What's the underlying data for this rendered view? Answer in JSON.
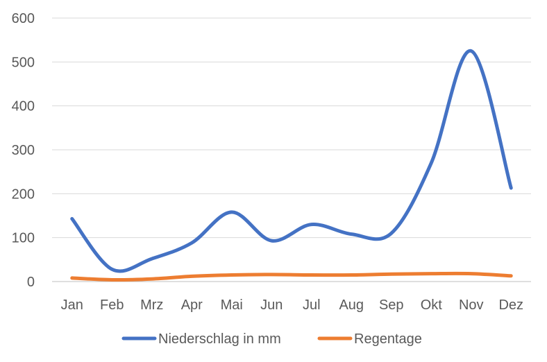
{
  "chart_data": {
    "type": "line",
    "categories": [
      "Jan",
      "Feb",
      "Mrz",
      "Apr",
      "Mai",
      "Jun",
      "Jul",
      "Aug",
      "Sep",
      "Okt",
      "Nov",
      "Dez"
    ],
    "series": [
      {
        "name": "Niederschlag in mm",
        "color": "#4472C4",
        "values": [
          143,
          28,
          52,
          88,
          158,
          93,
          130,
          108,
          110,
          270,
          525,
          213
        ]
      },
      {
        "name": "Regentage",
        "color": "#ED7D31",
        "values": [
          8,
          4,
          6,
          12,
          15,
          16,
          15,
          15,
          17,
          18,
          18,
          13
        ]
      }
    ],
    "ylim": [
      0,
      600
    ],
    "yticks": [
      "0",
      "100",
      "200",
      "300",
      "400",
      "500",
      "600"
    ],
    "grid": true,
    "smooth": true,
    "legend": "bottom"
  }
}
